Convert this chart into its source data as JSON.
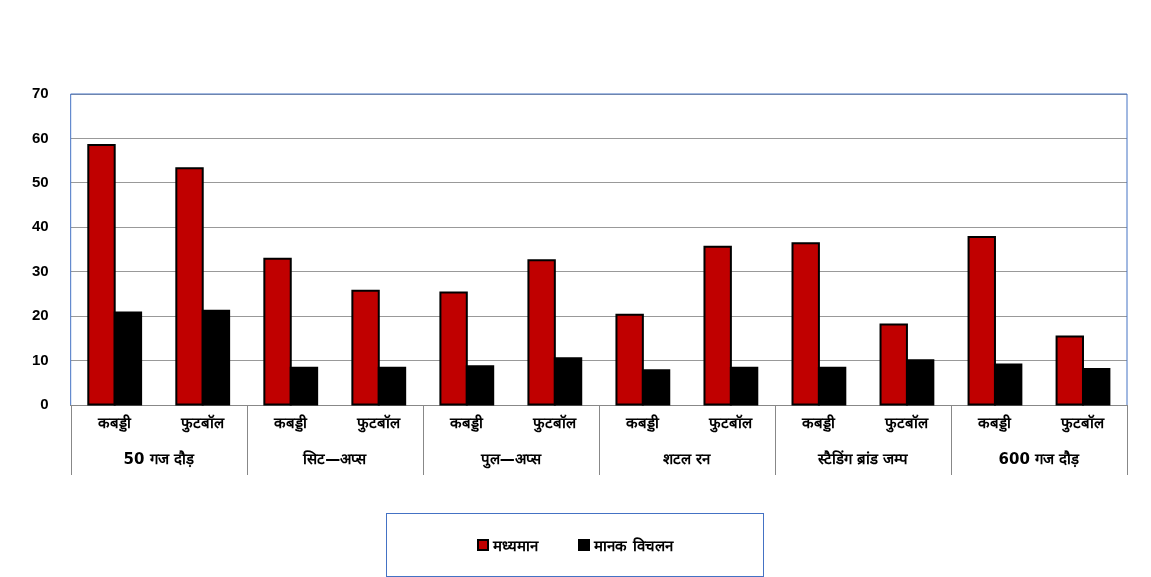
{
  "chart_data": {
    "type": "bar",
    "categories": [
      "कबड्डी",
      "फुटबॉल",
      "कबड्डी",
      "फुटबॉल",
      "कबड्डी",
      "फुटबॉल",
      "कबड्डी",
      "फुटबॉल",
      "कबड्डी",
      "फुटबॉल",
      "कबड्डी",
      "फुटबॉल"
    ],
    "annotations": [
      "50 गज दौड़",
      "सिट—अप्स",
      "पुल—अप्स",
      "शटल रन",
      "स्टैडिंग ब्रांड जम्प",
      "600 गज दौड़"
    ],
    "series": [
      {
        "name": "मध्यमान",
        "color": "#c00000",
        "values": [
          58.5,
          53.3,
          32.9,
          25.7,
          25.3,
          32.6,
          20.3,
          35.6,
          36.4,
          18.1,
          37.8,
          15.4
        ]
      },
      {
        "name": "मानक विचलन",
        "color": "#000000",
        "values": [
          20.8,
          21.2,
          8.4,
          8.4,
          8.7,
          10.5,
          7.8,
          8.4,
          8.4,
          10.1,
          9.1,
          8.1
        ]
      }
    ],
    "ylim": [
      0,
      70
    ],
    "yticks": [
      0,
      10,
      20,
      30,
      40,
      50,
      60,
      70
    ],
    "grid": "y",
    "legend": "bottom"
  }
}
